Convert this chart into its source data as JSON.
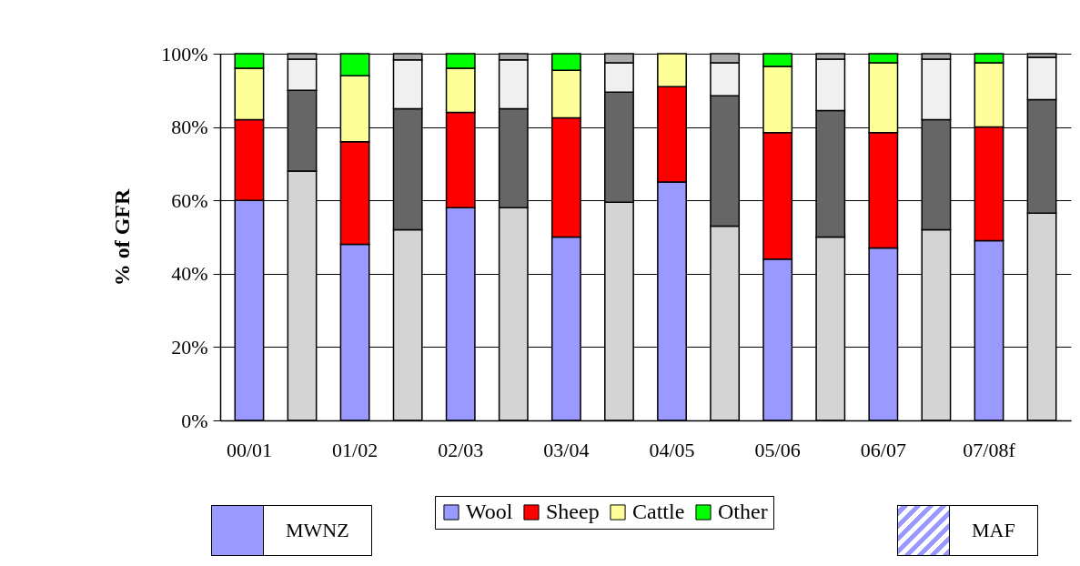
{
  "chart_data": {
    "type": "bar",
    "stacked": true,
    "ylabel": "% of GFR",
    "categories": [
      "00/01",
      null,
      "01/02",
      null,
      "02/03",
      null,
      "03/04",
      null,
      "04/05",
      null,
      "05/06",
      null,
      "06/07",
      null,
      "07/08f",
      null
    ],
    "series": [
      {
        "name": "Wool",
        "color": "#9999ff",
        "colors": [
          "#9999ff",
          "#d4d4d4",
          "#9999ff",
          "#d4d4d4",
          "#9999ff",
          "#d4d4d4",
          "#9999ff",
          "#d4d4d4",
          "#9999ff",
          "#d4d4d4",
          "#9999ff",
          "#d4d4d4",
          "#9999ff",
          "#d4d4d4",
          "#9999ff",
          "#d4d4d4"
        ],
        "values": [
          60,
          68,
          48,
          52,
          58,
          58,
          50,
          59.5,
          65,
          53,
          44,
          50,
          47,
          52,
          49,
          56.5
        ]
      },
      {
        "name": "Sheep",
        "color": "#ff0000",
        "colors": [
          "#ff0000",
          "#666666",
          "#ff0000",
          "#666666",
          "#ff0000",
          "#666666",
          "#ff0000",
          "#666666",
          "#ff0000",
          "#666666",
          "#ff0000",
          "#666666",
          "#ff0000",
          "#666666",
          "#ff0000",
          "#666666"
        ],
        "values": [
          22,
          22,
          28,
          33,
          26,
          27,
          32.5,
          30,
          26,
          35.5,
          34.5,
          34.5,
          31.5,
          30,
          31,
          31
        ]
      },
      {
        "name": "Cattle",
        "color": "#ffff99",
        "colors": [
          "#ffff99",
          "#f0f0f0",
          "#ffff99",
          "#f0f0f0",
          "#ffff99",
          "#f0f0f0",
          "#ffff99",
          "#f0f0f0",
          "#ffff99",
          "#f0f0f0",
          "#ffff99",
          "#f0f0f0",
          "#ffff99",
          "#f0f0f0",
          "#ffff99",
          "#f0f0f0"
        ],
        "values": [
          14,
          8.5,
          18,
          13.3,
          12,
          13.3,
          13,
          8,
          9,
          9,
          18,
          14,
          19,
          16.5,
          17.5,
          11.5
        ]
      },
      {
        "name": "Other",
        "color": "#00ff00",
        "colors": [
          "#00ff00",
          "#aaaaaa",
          "#00ff00",
          "#aaaaaa",
          "#00ff00",
          "#aaaaaa",
          "#00ff00",
          "#aaaaaa",
          null,
          "#aaaaaa",
          "#00ff00",
          "#aaaaaa",
          "#00ff00",
          "#aaaaaa",
          "#00ff00",
          "#aaaaaa"
        ],
        "values": [
          4,
          1.5,
          6,
          1.7,
          4,
          1.7,
          4.5,
          2.5,
          null,
          2.5,
          3.5,
          1.5,
          2.5,
          1.5,
          2.5,
          1
        ]
      }
    ],
    "ylim": [
      0,
      100
    ],
    "yticks": [
      {
        "value": 0,
        "label": "0%"
      },
      {
        "value": 20,
        "label": "20%"
      },
      {
        "value": 40,
        "label": "40%"
      },
      {
        "value": 60,
        "label": "60%"
      },
      {
        "value": 80,
        "label": "80%"
      },
      {
        "value": 100,
        "label": "100%"
      }
    ],
    "grid": "y",
    "legend": "bottom",
    "annotations": [
      "MWNZ",
      "MAF"
    ]
  }
}
